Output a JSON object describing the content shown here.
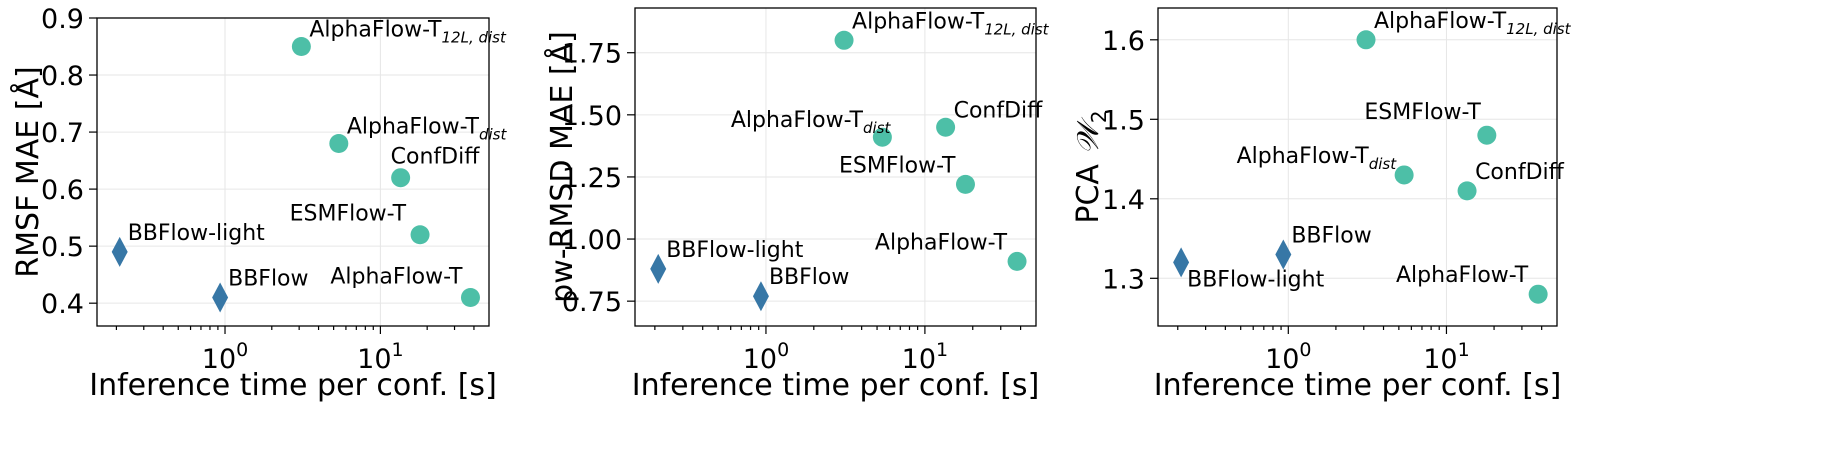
{
  "colors": {
    "teal": "#4dbfa7",
    "blue": "#3777a6"
  },
  "chart_data": [
    {
      "type": "scatter",
      "xscale": "log",
      "xlabel": "Inference time per conf. [s]",
      "ylabel": "RMSF MAE [Å]",
      "xlim": [
        0.15,
        50
      ],
      "ylim": [
        0.36,
        0.9
      ],
      "yticks": [
        "0.4",
        "0.5",
        "0.6",
        "0.7",
        "0.8",
        "0.9"
      ],
      "grid": true,
      "points": [
        {
          "label": "AlphaFlow-T",
          "sub": "12L, dist",
          "x": 3.1,
          "y": 0.85,
          "marker": "circle"
        },
        {
          "label": "AlphaFlow-T",
          "sub": "dist",
          "x": 5.4,
          "y": 0.68,
          "marker": "circle"
        },
        {
          "label": "ConfDiff",
          "sub": "",
          "x": 13.5,
          "y": 0.62,
          "marker": "circle"
        },
        {
          "label": "ESMFlow-T",
          "sub": "",
          "x": 18,
          "y": 0.52,
          "marker": "circle"
        },
        {
          "label": "AlphaFlow-T",
          "sub": "",
          "x": 38,
          "y": 0.41,
          "marker": "circle"
        },
        {
          "label": "BBFlow-light",
          "sub": "",
          "x": 0.21,
          "y": 0.49,
          "marker": "diamond"
        },
        {
          "label": "BBFlow",
          "sub": "",
          "x": 0.93,
          "y": 0.41,
          "marker": "diamond"
        }
      ]
    },
    {
      "type": "scatter",
      "xscale": "log",
      "xlabel": "Inference time per conf. [s]",
      "ylabel": "pw-RMSD MAE [Å]",
      "xlim": [
        0.15,
        50
      ],
      "ylim": [
        0.65,
        1.93
      ],
      "yticks": [
        "0.75",
        "1.00",
        "1.25",
        "1.50",
        "1.75"
      ],
      "grid": true,
      "points": [
        {
          "label": "AlphaFlow-T",
          "sub": "12L, dist",
          "x": 3.1,
          "y": 1.8,
          "marker": "circle"
        },
        {
          "label": "AlphaFlow-T",
          "sub": "dist",
          "x": 5.4,
          "y": 1.41,
          "marker": "circle"
        },
        {
          "label": "ConfDiff",
          "sub": "",
          "x": 13.5,
          "y": 1.45,
          "marker": "circle"
        },
        {
          "label": "ESMFlow-T",
          "sub": "",
          "x": 18,
          "y": 1.22,
          "marker": "circle"
        },
        {
          "label": "AlphaFlow-T",
          "sub": "",
          "x": 38,
          "y": 0.91,
          "marker": "circle"
        },
        {
          "label": "BBFlow-light",
          "sub": "",
          "x": 0.21,
          "y": 0.88,
          "marker": "diamond"
        },
        {
          "label": "BBFlow",
          "sub": "",
          "x": 0.93,
          "y": 0.77,
          "marker": "diamond"
        }
      ]
    },
    {
      "type": "scatter",
      "xscale": "log",
      "xlabel": "Inference time per conf. [s]",
      "ylabel": "PCA",
      "ylabel_math": "𝒲",
      "ylabel_sub": "2",
      "xlim": [
        0.15,
        50
      ],
      "ylim": [
        1.24,
        1.64
      ],
      "yticks": [
        "1.3",
        "1.4",
        "1.5",
        "1.6"
      ],
      "grid": true,
      "points": [
        {
          "label": "AlphaFlow-T",
          "sub": "12L, dist",
          "x": 3.1,
          "y": 1.6,
          "marker": "circle"
        },
        {
          "label": "ESMFlow-T",
          "sub": "",
          "x": 18,
          "y": 1.48,
          "marker": "circle"
        },
        {
          "label": "AlphaFlow-T",
          "sub": "dist",
          "x": 5.4,
          "y": 1.43,
          "marker": "circle"
        },
        {
          "label": "ConfDiff",
          "sub": "",
          "x": 13.5,
          "y": 1.41,
          "marker": "circle"
        },
        {
          "label": "AlphaFlow-T",
          "sub": "",
          "x": 38,
          "y": 1.28,
          "marker": "circle"
        },
        {
          "label": "BBFlow",
          "sub": "",
          "x": 0.93,
          "y": 1.33,
          "marker": "diamond"
        },
        {
          "label": "BBFlow-light",
          "sub": "",
          "x": 0.21,
          "y": 1.32,
          "marker": "diamond"
        }
      ]
    }
  ]
}
